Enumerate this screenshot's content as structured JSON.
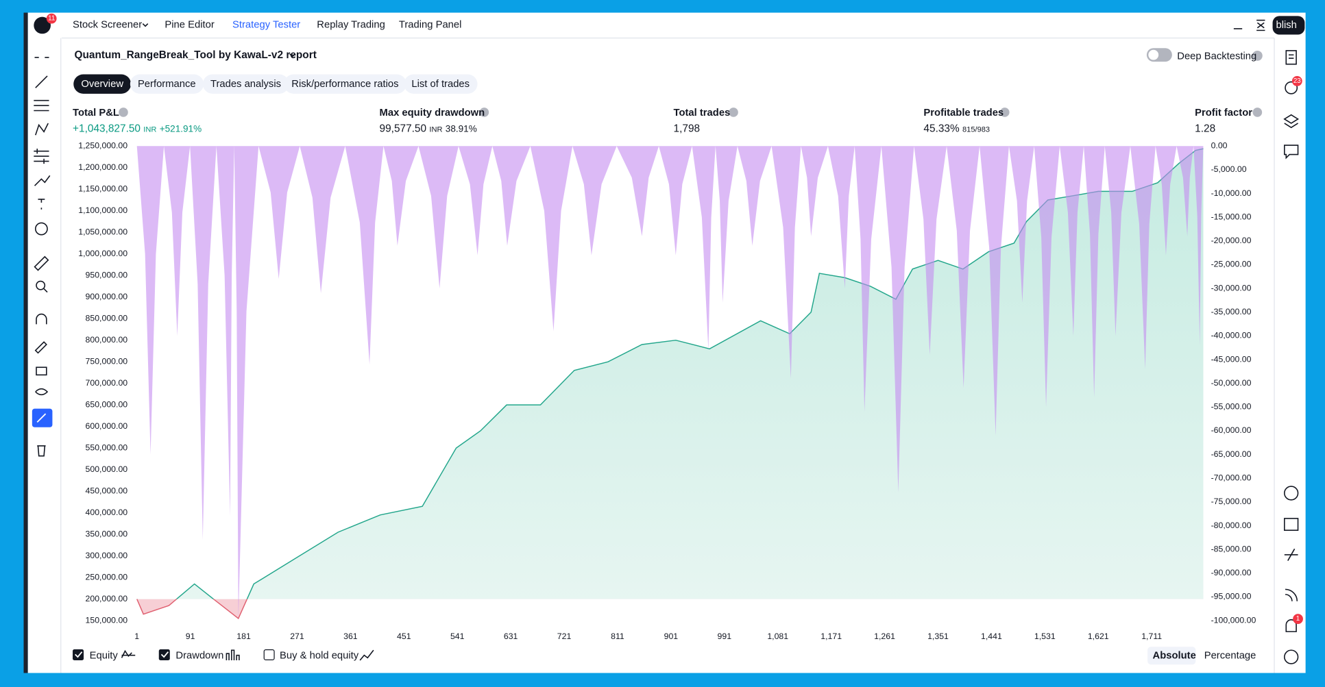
{
  "topbar": {
    "badge": "11",
    "menu": [
      "Stock Screener",
      "Pine Editor",
      "Strategy Tester",
      "Replay Trading",
      "Trading Panel"
    ],
    "publish": "blish"
  },
  "report": {
    "title": "Quantum_RangeBreak_Tool by KawaL-v2 report",
    "deep_backtesting": "Deep Backtesting"
  },
  "tabs": [
    "Overview",
    "Performance",
    "Trades analysis",
    "Risk/performance ratios",
    "List of trades"
  ],
  "metrics": [
    {
      "label": "Total P&L",
      "value": "+1,043,827.50",
      "unit": "INR",
      "extra": "+521.91%"
    },
    {
      "label": "Max equity drawdown",
      "value": "99,577.50",
      "unit": "INR",
      "extra": "38.91%"
    },
    {
      "label": "Total trades",
      "value": "1,798"
    },
    {
      "label": "Profitable trades",
      "value": "45.33%",
      "extra": "815/983"
    },
    {
      "label": "Profit factor",
      "value": "1.28"
    }
  ],
  "sidebar_badges": [
    "23",
    "1"
  ],
  "buy_hold_label": "Buy & hold equity",
  "scale_modes": [
    "Absolute",
    "Percentage"
  ],
  "chart_data": {
    "type": "line",
    "xlim": [
      1,
      1798
    ],
    "xticks": [
      1,
      91,
      181,
      271,
      361,
      451,
      541,
      631,
      721,
      811,
      901,
      991,
      {
        "value": 1081,
        "label": "1,081"
      },
      {
        "value": 1171,
        "label": "1,171"
      },
      {
        "value": 1261,
        "label": "1,261"
      },
      {
        "value": 1351,
        "label": "1,351"
      },
      {
        "value": 1441,
        "label": "1,441"
      },
      {
        "value": 1531,
        "label": "1,531"
      },
      {
        "value": 1621,
        "label": "1,621"
      },
      {
        "value": 1711,
        "label": "1,711"
      }
    ],
    "ylim": [
      150000,
      1250000
    ],
    "yticks": [
      {
        "value": 1250000,
        "label": "1,250,000.00"
      },
      {
        "value": 1200000,
        "label": "1,200,000.00"
      },
      {
        "value": 1150000,
        "label": "1,150,000.00"
      },
      {
        "value": 1100000,
        "label": "1,100,000.00"
      },
      {
        "value": 1050000,
        "label": "1,050,000.00"
      },
      {
        "value": 1000000,
        "label": "1,000,000.00"
      },
      {
        "value": 950000,
        "label": "950,000.00"
      },
      {
        "value": 900000,
        "label": "900,000.00"
      },
      {
        "value": 850000,
        "label": "850,000.00"
      },
      {
        "value": 800000,
        "label": "800,000.00"
      },
      {
        "value": 750000,
        "label": "750,000.00"
      },
      {
        "value": 700000,
        "label": "700,000.00"
      },
      {
        "value": 650000,
        "label": "650,000.00"
      },
      {
        "value": 600000,
        "label": "600,000.00"
      },
      {
        "value": 550000,
        "label": "550,000.00"
      },
      {
        "value": 500000,
        "label": "500,000.00"
      },
      {
        "value": 450000,
        "label": "450,000.00"
      },
      {
        "value": 400000,
        "label": "400,000.00"
      },
      {
        "value": 350000,
        "label": "350,000.00"
      },
      {
        "value": 300000,
        "label": "300,000.00"
      },
      {
        "value": 250000,
        "label": "250,000.00"
      },
      {
        "value": 200000,
        "label": "200,000.00"
      },
      {
        "value": 150000,
        "label": "150,000.00"
      }
    ],
    "y2lim": [
      -100000,
      0
    ],
    "y2ticks": [
      {
        "value": 0,
        "label": "0.00"
      },
      {
        "value": -5000,
        "label": "-5,000.00"
      },
      {
        "value": -10000,
        "label": "-10,000.00"
      },
      {
        "value": -15000,
        "label": "-15,000.00"
      },
      {
        "value": -20000,
        "label": "-20,000.00"
      },
      {
        "value": -25000,
        "label": "-25,000.00"
      },
      {
        "value": -30000,
        "label": "-30,000.00"
      },
      {
        "value": -35000,
        "label": "-35,000.00"
      },
      {
        "value": -40000,
        "label": "-40,000.00"
      },
      {
        "value": -45000,
        "label": "-45,000.00"
      },
      {
        "value": -50000,
        "label": "-50,000.00"
      },
      {
        "value": -55000,
        "label": "-55,000.00"
      },
      {
        "value": -60000,
        "label": "-60,000.00"
      },
      {
        "value": -65000,
        "label": "-65,000.00"
      },
      {
        "value": -70000,
        "label": "-70,000.00"
      },
      {
        "value": -75000,
        "label": "-75,000.00"
      },
      {
        "value": -80000,
        "label": "-80,000.00"
      },
      {
        "value": -85000,
        "label": "-85,000.00"
      },
      {
        "value": -90000,
        "label": "-90,000.00"
      },
      {
        "value": -95000,
        "label": "-95,000.00"
      },
      {
        "value": -100000,
        "label": "-100,000.00"
      }
    ],
    "series": [
      {
        "name": "Equity",
        "type": "area",
        "color": "#22a68b",
        "fill": "#cfeee6",
        "color_below": "#e06070",
        "fill_below": "#f7cfd5",
        "x": [
          1,
          12,
          55,
          98,
          130,
          172,
          198,
          269,
          340,
          411,
          482,
          539,
          580,
          624,
          681,
          738,
          795,
          852,
          909,
          966,
          1052,
          1101,
          1137,
          1151,
          1194,
          1237,
          1280,
          1308,
          1351,
          1393,
          1436,
          1479,
          1500,
          1536,
          1579,
          1621,
          1678,
          1721,
          1757,
          1785,
          1798
        ],
        "values": [
          200000,
          165000,
          185000,
          235000,
          200000,
          155000,
          235000,
          295000,
          355000,
          395000,
          415000,
          550000,
          590000,
          650000,
          650000,
          730000,
          750000,
          790000,
          800000,
          780000,
          845000,
          815000,
          865000,
          955000,
          945000,
          925000,
          895000,
          965000,
          985000,
          965000,
          1005000,
          1025000,
          1075000,
          1125000,
          1135000,
          1145000,
          1145000,
          1165000,
          1210000,
          1240000,
          1243827.5
        ]
      },
      {
        "name": "Drawdown",
        "type": "spikes",
        "axis": "y2",
        "color": "#c58cf0",
        "x": [
          24,
          69,
          112,
          158,
          172,
          240,
          311,
          393,
          440,
          511,
          575,
          625,
          703,
          767,
          852,
          909,
          964,
          988,
          1038,
          1103,
          1137,
          1194,
          1227,
          1284,
          1337,
          1394,
          1448,
          1493,
          1533,
          1579,
          1614,
          1650,
          1700,
          1735,
          1771,
          1792
        ],
        "values": [
          -65000,
          -40000,
          -83000,
          -78000,
          -99577.5,
          -28000,
          -31000,
          -46000,
          -21000,
          -30000,
          -23000,
          -21000,
          -39000,
          -23000,
          -19000,
          -23000,
          -43000,
          -33000,
          -21000,
          -49000,
          -19000,
          -30000,
          -56000,
          -73000,
          -44000,
          -51000,
          -61000,
          -33000,
          -55000,
          -40000,
          -53000,
          -40000,
          -47000,
          -23000,
          -19000,
          -42000
        ]
      }
    ]
  }
}
